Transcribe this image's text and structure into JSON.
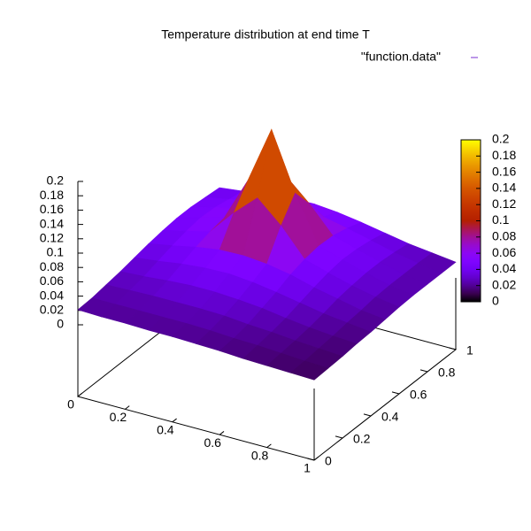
{
  "chart_data": {
    "type": "surface",
    "title": "Temperature distribution at end time T",
    "legend_label": "\"function.data\"",
    "x": [
      0,
      0.1,
      0.2,
      0.3,
      0.4,
      0.5,
      0.6,
      0.7,
      0.8,
      0.9,
      1
    ],
    "y": [
      0,
      0.1,
      0.2,
      0.3,
      0.4,
      0.5,
      0.6,
      0.7,
      0.8,
      0.9,
      1
    ],
    "z": [
      [
        0.021,
        0.02,
        0.02,
        0.019,
        0.019,
        0.018,
        0.017,
        0.015,
        0.014,
        0.013,
        0.012
      ],
      [
        0.022,
        0.022,
        0.022,
        0.022,
        0.022,
        0.021,
        0.019,
        0.018,
        0.016,
        0.014,
        0.013
      ],
      [
        0.025,
        0.026,
        0.027,
        0.027,
        0.027,
        0.026,
        0.023,
        0.021,
        0.018,
        0.016,
        0.014
      ],
      [
        0.028,
        0.03,
        0.033,
        0.035,
        0.035,
        0.033,
        0.03,
        0.025,
        0.021,
        0.018,
        0.016
      ],
      [
        0.032,
        0.036,
        0.041,
        0.044,
        0.045,
        0.042,
        0.037,
        0.031,
        0.025,
        0.021,
        0.017
      ],
      [
        0.036,
        0.042,
        0.049,
        0.054,
        0.055,
        0.052,
        0.046,
        0.037,
        0.03,
        0.023,
        0.019
      ],
      [
        0.039,
        0.047,
        0.055,
        0.09,
        0.12,
        0.09,
        0.052,
        0.042,
        0.033,
        0.026,
        0.021
      ],
      [
        0.041,
        0.05,
        0.059,
        0.12,
        0.2,
        0.12,
        0.055,
        0.045,
        0.035,
        0.027,
        0.022
      ],
      [
        0.041,
        0.049,
        0.057,
        0.09,
        0.12,
        0.09,
        0.054,
        0.044,
        0.035,
        0.027,
        0.022
      ],
      [
        0.039,
        0.045,
        0.052,
        0.057,
        0.059,
        0.056,
        0.049,
        0.041,
        0.033,
        0.027,
        0.022
      ],
      [
        0.037,
        0.041,
        0.045,
        0.049,
        0.05,
        0.047,
        0.042,
        0.036,
        0.03,
        0.026,
        0.022
      ]
    ],
    "xlim": [
      0,
      1
    ],
    "ylim": [
      0,
      1
    ],
    "zlim": [
      0,
      0.2
    ],
    "xticks": [
      0,
      0.2,
      0.4,
      0.6,
      0.8,
      1
    ],
    "yticks": [
      0,
      0.2,
      0.4,
      0.6,
      0.8,
      1
    ],
    "zticks": [
      0,
      0.02,
      0.04,
      0.06,
      0.08,
      0.1,
      0.12,
      0.14,
      0.16,
      0.18,
      0.2
    ],
    "cblim": [
      0,
      0.2
    ],
    "cbticks": [
      0,
      0.02,
      0.04,
      0.06,
      0.08,
      0.1,
      0.12,
      0.14,
      0.16,
      0.18,
      0.2
    ]
  }
}
